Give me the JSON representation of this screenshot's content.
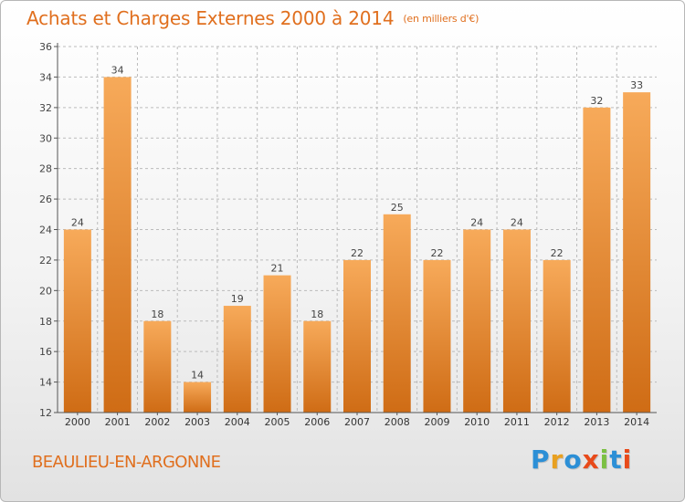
{
  "header": {
    "title": "Achats et Charges Externes 2000 à 2014",
    "unit": "(en milliers d'€)"
  },
  "footer": {
    "place": "BEAULIEU-EN-ARGONNE",
    "logo_letters": [
      "P",
      "r",
      "o",
      "x",
      "i",
      "t",
      "i"
    ],
    "logo_colors": [
      "#2c8fd6",
      "#e8a020",
      "#2c8fd6",
      "#e84a1a",
      "#7bc043",
      "#2c8fd6",
      "#e84a1a"
    ]
  },
  "colors": {
    "bar_top": "#f7aa5a",
    "bar_bottom": "#cf6c15",
    "accent": "#e06f1e",
    "grid": "#bbbbbb"
  },
  "chart_data": {
    "type": "bar",
    "title": "Achats et Charges Externes 2000 à 2014",
    "subtitle": "(en milliers d'€)",
    "xlabel": "",
    "ylabel": "",
    "categories": [
      "2000",
      "2001",
      "2002",
      "2003",
      "2004",
      "2005",
      "2006",
      "2007",
      "2008",
      "2009",
      "2010",
      "2011",
      "2012",
      "2013",
      "2014"
    ],
    "values": [
      24,
      34,
      18,
      14,
      19,
      21,
      18,
      22,
      25,
      22,
      24,
      24,
      22,
      32,
      33
    ],
    "ylim": [
      12,
      36
    ],
    "yticks": [
      12,
      14,
      16,
      18,
      20,
      22,
      24,
      26,
      28,
      30,
      32,
      34,
      36
    ],
    "grid": true,
    "legend": "none"
  }
}
